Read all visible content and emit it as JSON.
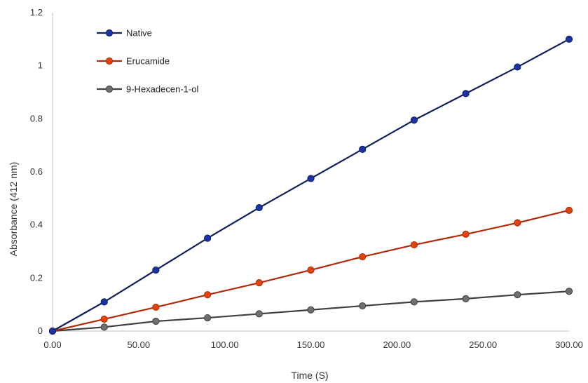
{
  "chart_data": {
    "type": "line",
    "title": "",
    "xlabel": "Time (S)",
    "ylabel": "Absorbance (412 nm)",
    "xlim": [
      0,
      300
    ],
    "ylim": [
      0,
      1.2
    ],
    "x_ticks": [
      "0.00",
      "50.00",
      "100.00",
      "150.00",
      "200.00",
      "250.00",
      "300.00"
    ],
    "y_ticks": [
      "0",
      "0.2",
      "0.4",
      "0.6",
      "0.8",
      "1",
      "1.2"
    ],
    "grid": false,
    "legend_position": "top-left",
    "x": [
      0,
      30,
      60,
      90,
      120,
      150,
      180,
      210,
      240,
      270,
      300
    ],
    "series": [
      {
        "name": "Native",
        "line_color": "#0f1f5c",
        "marker_color": "#1c33a8",
        "values": [
          0,
          0.11,
          0.23,
          0.35,
          0.465,
          0.575,
          0.685,
          0.795,
          0.895,
          0.995,
          1.1
        ]
      },
      {
        "name": "Erucamide",
        "line_color": "#b02a0a",
        "marker_color": "#e0440e",
        "values": [
          0,
          0.045,
          0.09,
          0.137,
          0.182,
          0.23,
          0.28,
          0.325,
          0.365,
          0.408,
          0.455
        ]
      },
      {
        "name": "9-Hexadecen-1-ol",
        "line_color": "#404040",
        "marker_color": "#6f6f6f",
        "values": [
          0,
          0.015,
          0.037,
          0.05,
          0.065,
          0.08,
          0.095,
          0.11,
          0.122,
          0.137,
          0.15
        ]
      }
    ]
  }
}
